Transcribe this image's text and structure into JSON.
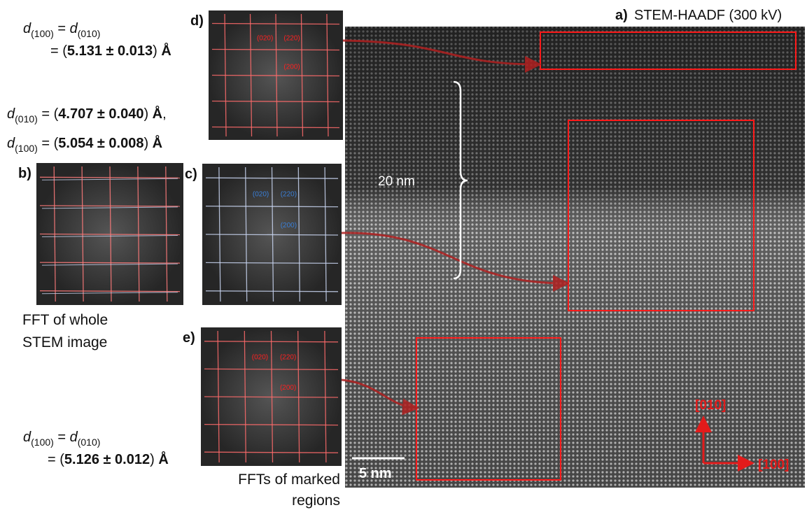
{
  "figure": {
    "main": {
      "label": "a)",
      "title": "STEM-HAADF (300 kV)",
      "distance_label": "20 nm",
      "scale_bar": "5 nm",
      "direction_up": "[010]",
      "direction_right": "[100]"
    },
    "panels": [
      {
        "label": "d)",
        "spots": [
          "(020)",
          "(220)",
          "(200)"
        ]
      },
      {
        "label": "b)"
      },
      {
        "label": "c)",
        "spots": [
          "(020)",
          "(220)",
          "(200)"
        ]
      },
      {
        "label": "e)",
        "spots": [
          "(020)",
          "(220)",
          "(200)"
        ]
      }
    ],
    "captions": {
      "whole": [
        "FFT of whole",
        "STEM image"
      ],
      "marked": [
        "FFTs of marked",
        "regions"
      ]
    },
    "equations": [
      {
        "lines": [
          [
            {
              "text": "d",
              "style": "italic"
            },
            {
              "text": "(100)",
              "style": "sub"
            },
            {
              "text": " = "
            },
            {
              "text": "d",
              "style": "italic"
            },
            {
              "text": "(010)",
              "style": "sub"
            }
          ],
          [
            {
              "text": "= ("
            },
            {
              "text": "5.131 ± 0.013",
              "style": "bold"
            },
            {
              "text": ") "
            },
            {
              "text": "Å",
              "style": "bold"
            }
          ]
        ]
      },
      {
        "lines": [
          [
            {
              "text": "d",
              "style": "italic"
            },
            {
              "text": "(010)",
              "style": "sub"
            },
            {
              "text": " = ("
            },
            {
              "text": "4.707 ± 0.040",
              "style": "bold"
            },
            {
              "text": ") "
            },
            {
              "text": "Å",
              "style": "bold"
            },
            {
              "text": ","
            }
          ],
          [
            {
              "text": "d",
              "style": "italic"
            },
            {
              "text": "(100)",
              "style": "sub"
            },
            {
              "text": " = ("
            },
            {
              "text": "5.054 ± 0.008",
              "style": "bold"
            },
            {
              "text": ") "
            },
            {
              "text": "Å",
              "style": "bold"
            }
          ]
        ]
      },
      {
        "lines": [
          [
            {
              "text": "d",
              "style": "italic"
            },
            {
              "text": "(100)",
              "style": "sub"
            },
            {
              "text": " = "
            },
            {
              "text": "d",
              "style": "italic"
            },
            {
              "text": "(010)",
              "style": "sub"
            }
          ],
          [
            {
              "text": "= ("
            },
            {
              "text": "5.126 ± 0.012",
              "style": "bold"
            },
            {
              "text": ") "
            },
            {
              "text": "Å",
              "style": "bold"
            }
          ]
        ]
      }
    ]
  }
}
